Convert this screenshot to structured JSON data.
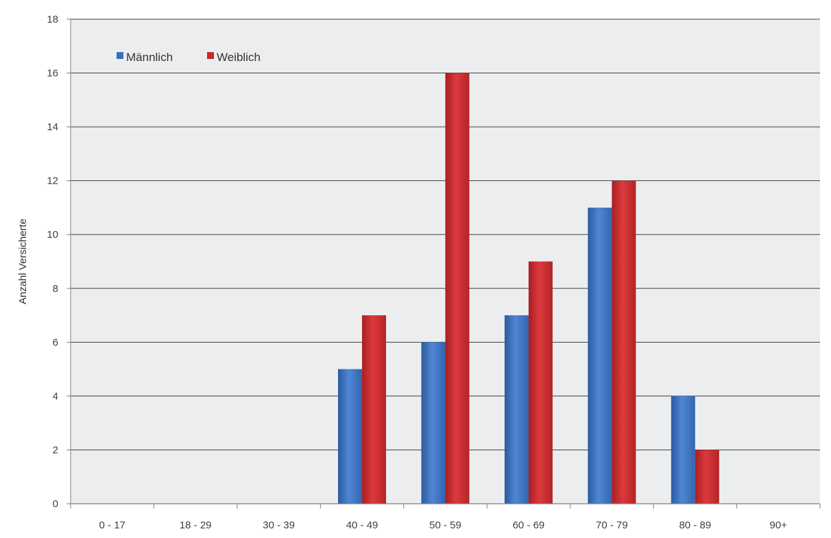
{
  "chart_data": {
    "type": "bar",
    "title": "",
    "xlabel": "",
    "ylabel": "Anzahl Versicherte",
    "ylim": [
      0,
      18
    ],
    "yticks": [
      0,
      2,
      4,
      6,
      8,
      10,
      12,
      14,
      16,
      18
    ],
    "grid": true,
    "legend_position": "top-left",
    "categories": [
      "0 - 17",
      "18 - 29",
      "30 - 39",
      "40 - 49",
      "50 - 59",
      "60 - 69",
      "70 - 79",
      "80 - 89",
      "90+"
    ],
    "series": [
      {
        "name": "Männlich",
        "color": "#3A6FBE",
        "values": [
          0,
          0,
          0,
          5,
          6,
          7,
          11,
          4,
          0
        ]
      },
      {
        "name": "Weiblich",
        "color": "#C8282C",
        "values": [
          0,
          0,
          0,
          7,
          16,
          9,
          12,
          2,
          0
        ]
      }
    ],
    "colors": {
      "plot_background": "#ECEDEE",
      "gridline": "#404040",
      "axis": "#7F7F7F"
    }
  }
}
